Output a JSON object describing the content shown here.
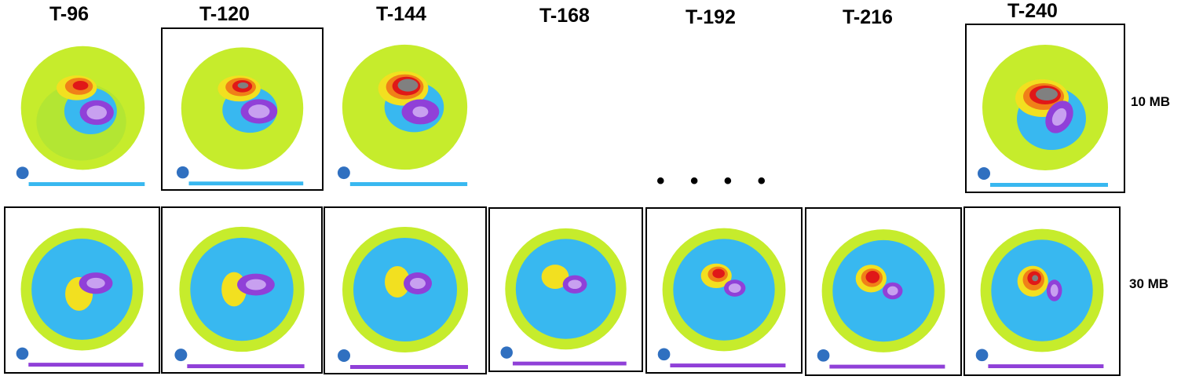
{
  "columns": [
    {
      "label": "T-96"
    },
    {
      "label": "T-120"
    },
    {
      "label": "T-144"
    },
    {
      "label": "T-168"
    },
    {
      "label": "T-192"
    },
    {
      "label": "T-216"
    },
    {
      "label": "T-240"
    }
  ],
  "rows": [
    {
      "label": "10 MB"
    },
    {
      "label": "30 MB"
    }
  ],
  "ellipsis": "• • • •",
  "colors": {
    "outer": "#c6ec2c",
    "cold_ring": "#38b8f0",
    "warm_core": "#f2e020",
    "orange": "#f08018",
    "red": "#e01818",
    "gray": "#808080",
    "purple": "#9040d8",
    "lavender": "#c8a0f0"
  },
  "panels_10mb": [
    {
      "col": 0,
      "warm": "red"
    },
    {
      "col": 1,
      "warm": "gray"
    },
    {
      "col": 2,
      "warm": "gray"
    },
    {
      "col": 6,
      "warm": "gray"
    }
  ],
  "panels_30mb": [
    {
      "col": 0,
      "warm": "yellow"
    },
    {
      "col": 1,
      "warm": "yellow"
    },
    {
      "col": 2,
      "warm": "yellow"
    },
    {
      "col": 3,
      "warm": "yellow"
    },
    {
      "col": 4,
      "warm": "red"
    },
    {
      "col": 5,
      "warm": "red"
    },
    {
      "col": 6,
      "warm": "red"
    }
  ]
}
